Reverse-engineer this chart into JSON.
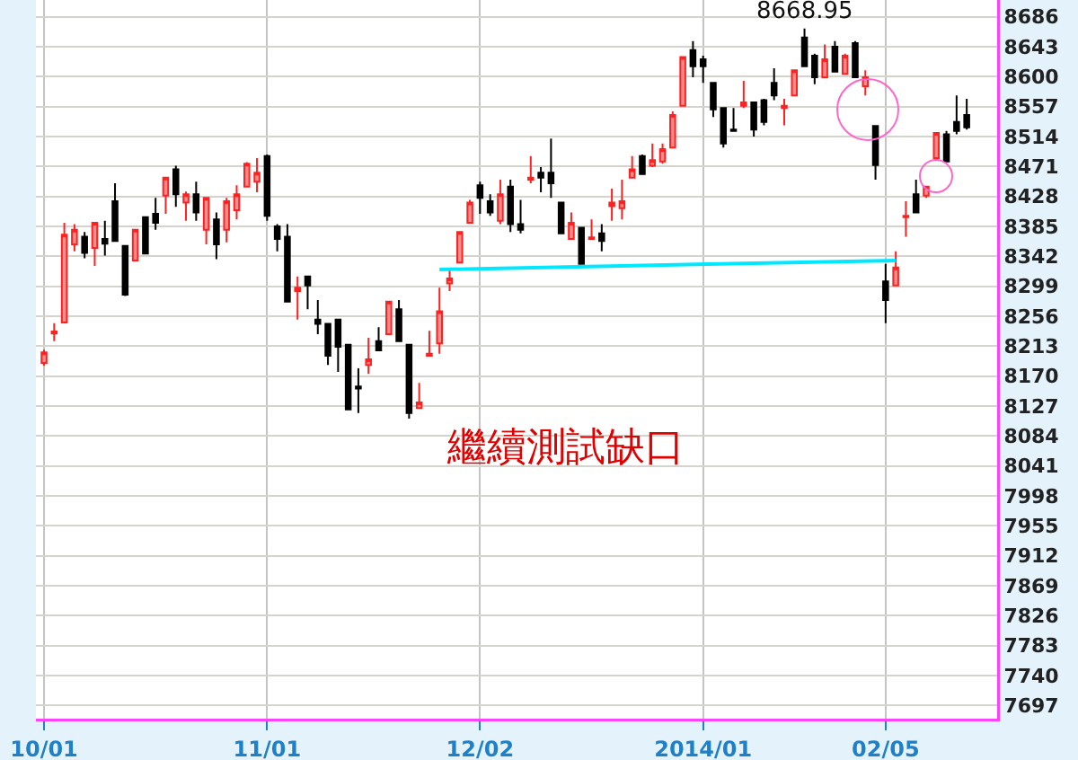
{
  "chart_data": {
    "type": "candlestick",
    "categories": [
      "10/01",
      null,
      null,
      null,
      null,
      null,
      null,
      null,
      null,
      null,
      null,
      null,
      null,
      null,
      null,
      null,
      null,
      null,
      null,
      null,
      null,
      null,
      "11/01",
      null,
      null,
      null,
      null,
      null,
      null,
      null,
      null,
      null,
      null,
      null,
      null,
      null,
      null,
      null,
      null,
      null,
      null,
      null,
      null,
      "12/02",
      null,
      null,
      null,
      null,
      null,
      null,
      null,
      null,
      null,
      null,
      null,
      null,
      null,
      null,
      null,
      null,
      null,
      null,
      null,
      null,
      null,
      "2014/01",
      null,
      null,
      null,
      null,
      null,
      null,
      null,
      null,
      null,
      null,
      null,
      null,
      null,
      null,
      null,
      null,
      null,
      "02/05",
      null,
      null,
      null,
      null,
      null,
      null,
      null,
      null
    ],
    "ohlc": [
      [
        8189,
        8208,
        8185,
        8204
      ],
      [
        8231,
        8246,
        8220,
        8234
      ],
      [
        8247,
        8390,
        8247,
        8373
      ],
      [
        8359,
        8388,
        8349,
        8380
      ],
      [
        8370,
        8377,
        8339,
        8347
      ],
      [
        8354,
        8390,
        8328,
        8390
      ],
      [
        8367,
        8393,
        8343,
        8360
      ],
      [
        8421,
        8447,
        8364,
        8364
      ],
      [
        8357,
        8357,
        8285,
        8287
      ],
      [
        8336,
        8380,
        8336,
        8380
      ],
      [
        8398,
        8398,
        8346,
        8346
      ],
      [
        8403,
        8426,
        8380,
        8390
      ],
      [
        8429,
        8455,
        8403,
        8455
      ],
      [
        8467,
        8472,
        8413,
        8431
      ],
      [
        8419,
        8435,
        8393,
        8431
      ],
      [
        8431,
        8449,
        8393,
        8405
      ],
      [
        8380,
        8426,
        8359,
        8426
      ],
      [
        8395,
        8405,
        8338,
        8359
      ],
      [
        8380,
        8426,
        8362,
        8421
      ],
      [
        8408,
        8444,
        8395,
        8431
      ],
      [
        8442,
        8477,
        8442,
        8475
      ],
      [
        8449,
        8483,
        8434,
        8462
      ],
      [
        8486,
        8488,
        8393,
        8400
      ],
      [
        8385,
        8388,
        8349,
        8367
      ],
      [
        8370,
        8388,
        8277,
        8277
      ],
      [
        8292,
        8313,
        8251,
        8297
      ],
      [
        8313,
        8313,
        8266,
        8300
      ],
      [
        8251,
        8279,
        8230,
        8245
      ],
      [
        8245,
        8245,
        8186,
        8199
      ],
      [
        8251,
        8251,
        8176,
        8212
      ],
      [
        8215,
        8215,
        8122,
        8122
      ],
      [
        8155,
        8181,
        8117,
        8152
      ],
      [
        8186,
        8225,
        8173,
        8194
      ],
      [
        8220,
        8240,
        8207,
        8207
      ],
      [
        8230,
        8277,
        8230,
        8277
      ],
      [
        8266,
        8279,
        8220,
        8220
      ],
      [
        8215,
        8215,
        8109,
        8117
      ],
      [
        8124,
        8160,
        8124,
        8132
      ],
      [
        8199,
        8235,
        8199,
        8202
      ],
      [
        8217,
        8297,
        8202,
        8263
      ],
      [
        8303,
        8323,
        8292,
        8310
      ],
      [
        8333,
        8377,
        8333,
        8377
      ],
      [
        8390,
        8423,
        8390,
        8419
      ],
      [
        8444,
        8449,
        8403,
        8426
      ],
      [
        8421,
        8431,
        8400,
        8405
      ],
      [
        8393,
        8452,
        8388,
        8431
      ],
      [
        8442,
        8452,
        8377,
        8388
      ],
      [
        8388,
        8423,
        8375,
        8380
      ],
      [
        8452,
        8486,
        8447,
        8455
      ],
      [
        8462,
        8470,
        8434,
        8455
      ],
      [
        8462,
        8511,
        8426,
        8447
      ],
      [
        8419,
        8419,
        8375,
        8375
      ],
      [
        8367,
        8405,
        8367,
        8390
      ],
      [
        8383,
        8383,
        8331,
        8331
      ],
      [
        8367,
        8395,
        8367,
        8369
      ],
      [
        8375,
        8388,
        8349,
        8364
      ],
      [
        8414,
        8439,
        8393,
        8419
      ],
      [
        8411,
        8452,
        8395,
        8421
      ],
      [
        8455,
        8486,
        8455,
        8467
      ],
      [
        8486,
        8488,
        8460,
        8460
      ],
      [
        8472,
        8504,
        8470,
        8480
      ],
      [
        8478,
        8504,
        8475,
        8496
      ],
      [
        8498,
        8550,
        8498,
        8545
      ],
      [
        8558,
        8628,
        8558,
        8628
      ],
      [
        8638,
        8651,
        8599,
        8615
      ],
      [
        8625,
        8630,
        8591,
        8615
      ],
      [
        8591,
        8591,
        8542,
        8553
      ],
      [
        8555,
        8555,
        8498,
        8504
      ],
      [
        8524,
        8555,
        8522,
        8522
      ],
      [
        8558,
        8594,
        8555,
        8563
      ],
      [
        8563,
        8563,
        8514,
        8524
      ],
      [
        8566,
        8568,
        8530,
        8535
      ],
      [
        8591,
        8612,
        8566,
        8573
      ],
      [
        8555,
        8568,
        8530,
        8558
      ],
      [
        8573,
        8609,
        8573,
        8609
      ],
      [
        8656,
        8668.95,
        8615,
        8615
      ],
      [
        8630,
        8633,
        8589,
        8599
      ],
      [
        8599,
        8646,
        8599,
        8625
      ],
      [
        8643,
        8651,
        8607,
        8607
      ],
      [
        8604,
        8633,
        8604,
        8630
      ],
      [
        8648,
        8651,
        8599,
        8599
      ],
      [
        8586,
        8609,
        8573,
        8599
      ],
      [
        8529,
        8529,
        8452,
        8473
      ],
      [
        8306,
        8331,
        8246,
        8279
      ],
      [
        8300,
        8349,
        8300,
        8326
      ],
      [
        8398,
        8421,
        8370,
        8400
      ],
      [
        8431,
        8452,
        8405,
        8405
      ],
      [
        8429,
        8442,
        8426,
        8442
      ],
      [
        8483,
        8519,
        8483,
        8519
      ],
      [
        8517,
        8522,
        8478,
        8478
      ],
      [
        8535,
        8573,
        8517,
        8522
      ],
      [
        8545,
        8568,
        8524,
        8527
      ]
    ],
    "series": [
      {
        "type": "line",
        "color": "#00e8ff",
        "values": [
          null,
          null,
          null,
          null,
          null,
          null,
          null,
          null,
          null,
          null,
          null,
          null,
          null,
          null,
          null,
          null,
          null,
          null,
          null,
          null,
          null,
          null,
          null,
          null,
          null,
          null,
          null,
          null,
          null,
          null,
          null,
          null,
          null,
          null,
          null,
          null,
          null,
          null,
          null,
          8323,
          null,
          null,
          null,
          null,
          null,
          null,
          null,
          null,
          null,
          null,
          null,
          null,
          null,
          null,
          null,
          null,
          null,
          null,
          null,
          null,
          null,
          null,
          null,
          null,
          null,
          null,
          null,
          null,
          null,
          null,
          null,
          null,
          null,
          null,
          null,
          null,
          null,
          null,
          null,
          null,
          null,
          null,
          null,
          null,
          8336,
          null,
          null,
          null,
          null,
          null,
          null,
          null
        ]
      }
    ],
    "ylim": [
      7678,
      8710
    ],
    "yticks": [
      7697,
      7740,
      7783,
      7826,
      7869,
      7912,
      7955,
      7998,
      8041,
      8084,
      8127,
      8170,
      8213,
      8256,
      8299,
      8342,
      8385,
      8428,
      8471,
      8514,
      8557,
      8600,
      8643,
      8686
    ],
    "grid": true,
    "annotations": [
      {
        "text": "8668.95",
        "y": 8668.95
      },
      "繼續測試缺口"
    ]
  }
}
